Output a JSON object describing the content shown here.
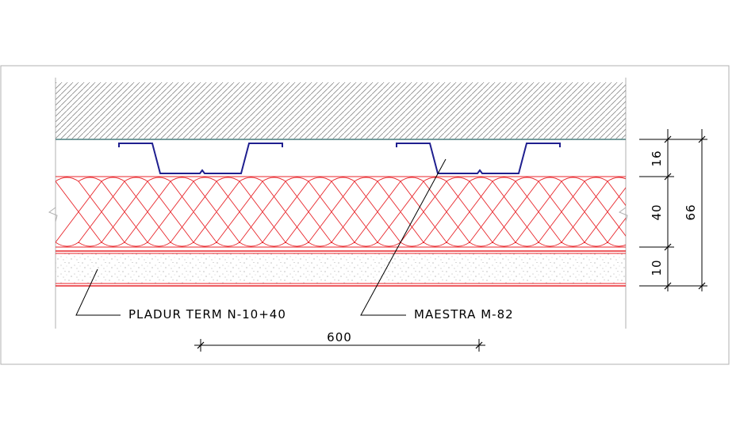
{
  "colors": {
    "frame": "#b0b0b0",
    "hatch": "#8a8a8a",
    "slab_line": "#4a7f7f",
    "insulation": "#e8262b",
    "profile": "#1f1f8f",
    "dimension": "#000000",
    "stipple": "#9a9a9a"
  },
  "labels": {
    "panel_label": "PLADUR TERM N-10+40",
    "profile_label": "MAESTRA M-82"
  },
  "dimensions": {
    "spacing": "600",
    "gap": "16",
    "insulation": "40",
    "board": "10",
    "total": "66"
  }
}
